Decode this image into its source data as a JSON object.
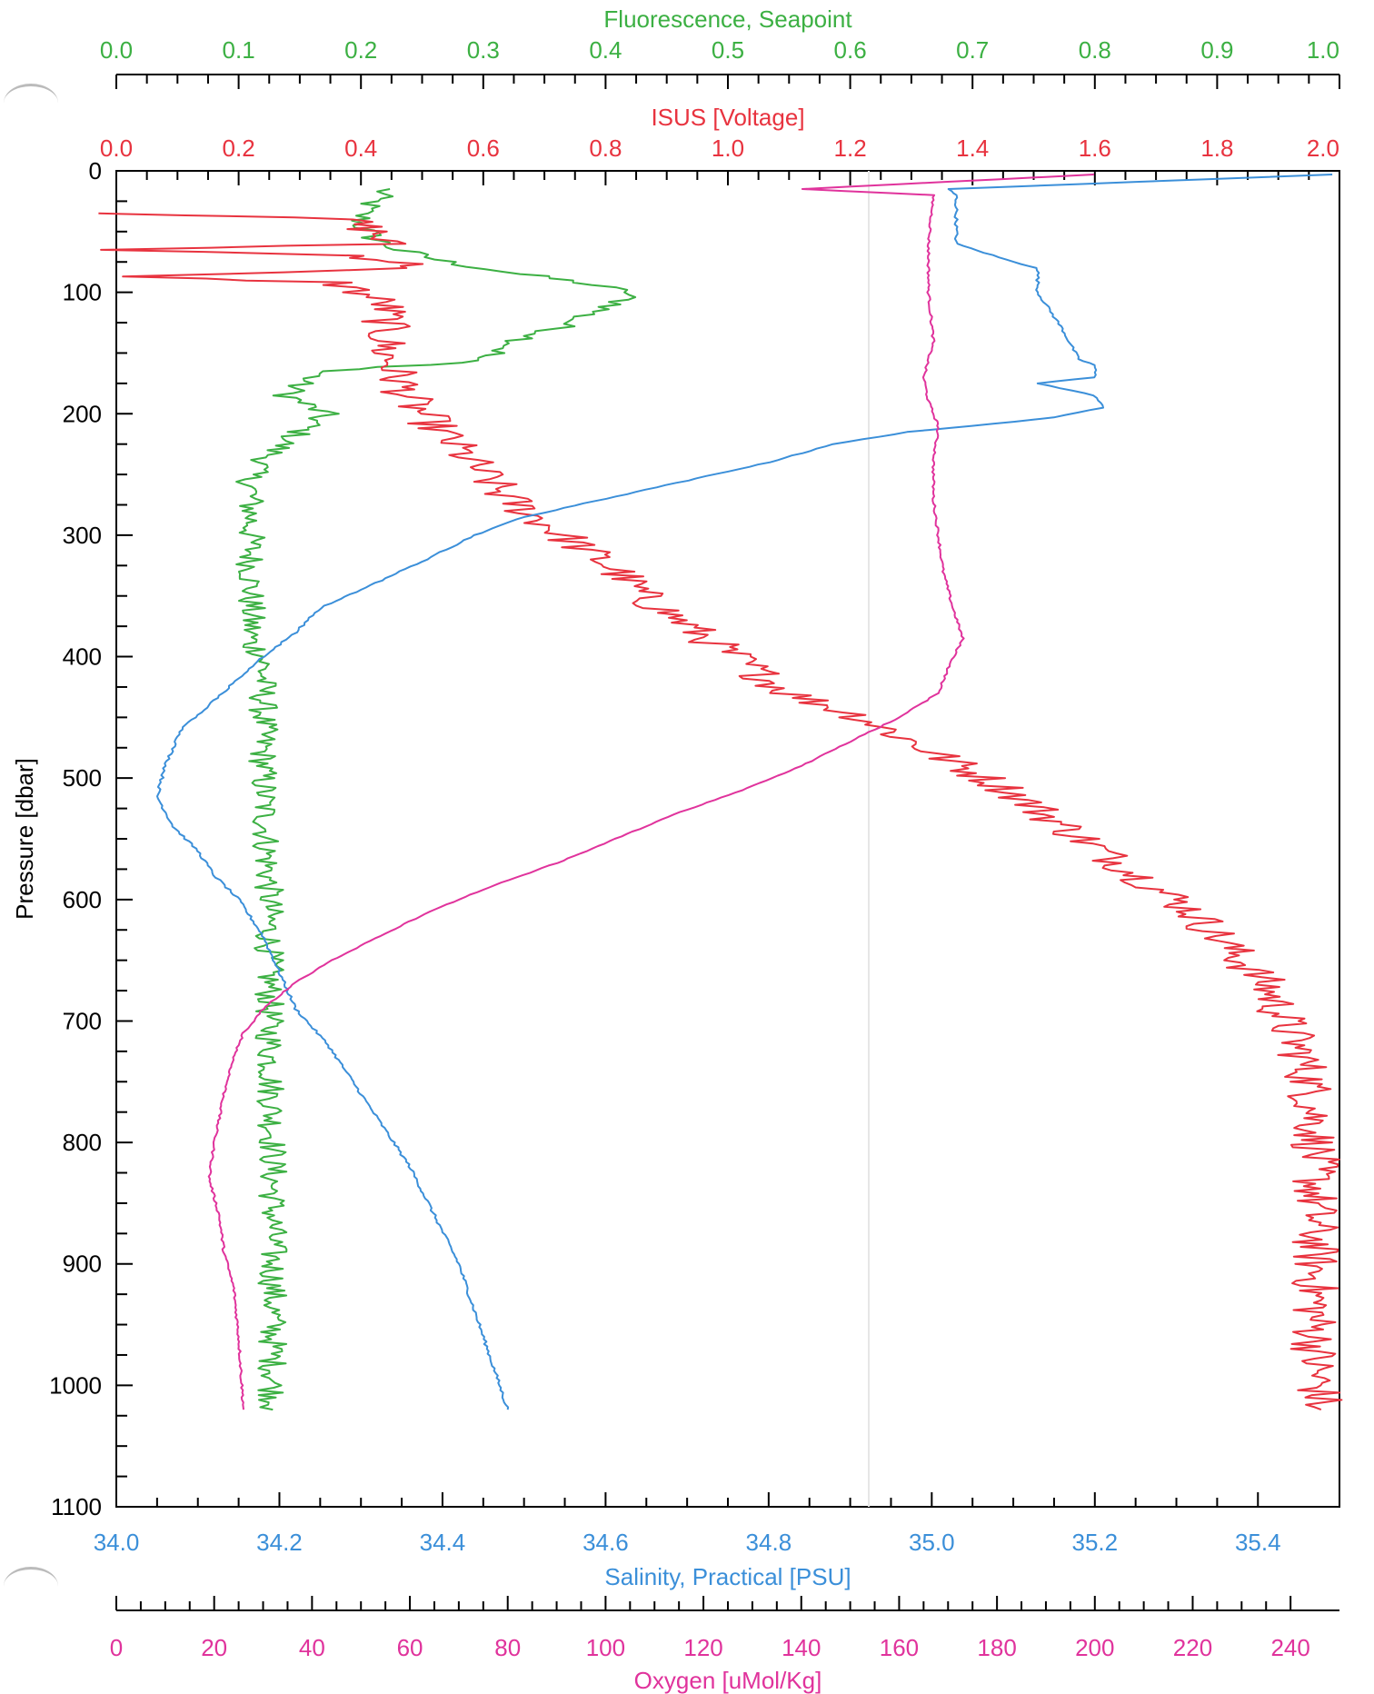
{
  "chart_data": {
    "type": "line",
    "ylabel": "Pressure [dbar]",
    "ylim": [
      0,
      1100
    ],
    "y_ticks": [
      0,
      100,
      200,
      300,
      400,
      500,
      600,
      700,
      800,
      900,
      1000,
      1100
    ],
    "y_reversed": true,
    "grid": false,
    "axes": {
      "fluorescence": {
        "label": "Fluorescence, Seapoint",
        "position": "top-outer",
        "color": "#3cb043",
        "range": [
          0.0,
          1.0
        ],
        "ticks": [
          "0.0",
          "0.1",
          "0.2",
          "0.3",
          "0.4",
          "0.5",
          "0.6",
          "0.7",
          "0.8",
          "0.9",
          "1.0"
        ]
      },
      "isus": {
        "label": "ISUS [Voltage]",
        "position": "top-inner",
        "color": "#e8333f",
        "range": [
          0.0,
          2.0
        ],
        "ticks": [
          "0.0",
          "0.2",
          "0.4",
          "0.6",
          "0.8",
          "1.0",
          "1.2",
          "1.4",
          "1.6",
          "1.8",
          "2.0"
        ]
      },
      "salinity": {
        "label": "Salinity, Practical [PSU]",
        "position": "bottom-inner",
        "color": "#3b8fd9",
        "range": [
          34.0,
          35.5
        ],
        "ticks": [
          "34.0",
          "34.2",
          "34.4",
          "34.6",
          "34.8",
          "35.0",
          "35.2",
          "35.4"
        ]
      },
      "oxygen": {
        "label": "Oxygen [uMol/Kg]",
        "position": "bottom-outer",
        "color": "#e0339c",
        "range": [
          0,
          250
        ],
        "ticks": [
          "0",
          "20",
          "40",
          "60",
          "80",
          "100",
          "120",
          "140",
          "160",
          "180",
          "200",
          "220",
          "240"
        ]
      }
    },
    "series": [
      {
        "name": "Fluorescence, Seapoint",
        "axis": "fluorescence",
        "color": "#3cb043",
        "noise": 0.012,
        "points": [
          [
            0.22,
            15
          ],
          [
            0.21,
            25
          ],
          [
            0.2,
            35
          ],
          [
            0.2,
            45
          ],
          [
            0.21,
            55
          ],
          [
            0.23,
            65
          ],
          [
            0.27,
            75
          ],
          [
            0.33,
            85
          ],
          [
            0.38,
            92
          ],
          [
            0.42,
            100
          ],
          [
            0.41,
            110
          ],
          [
            0.38,
            120
          ],
          [
            0.36,
            130
          ],
          [
            0.33,
            140
          ],
          [
            0.31,
            150
          ],
          [
            0.28,
            158
          ],
          [
            0.17,
            165
          ],
          [
            0.15,
            175
          ],
          [
            0.14,
            185
          ],
          [
            0.17,
            200
          ],
          [
            0.15,
            215
          ],
          [
            0.13,
            230
          ],
          [
            0.11,
            250
          ],
          [
            0.11,
            300
          ],
          [
            0.11,
            350
          ],
          [
            0.11,
            390
          ],
          [
            0.12,
            398
          ],
          [
            0.12,
            420
          ],
          [
            0.12,
            500
          ],
          [
            0.125,
            600
          ],
          [
            0.125,
            700
          ],
          [
            0.128,
            800
          ],
          [
            0.128,
            900
          ],
          [
            0.128,
            1020
          ]
        ]
      },
      {
        "name": "ISUS [Voltage]",
        "axis": "isus",
        "color": "#e8333f",
        "noise": 0.04,
        "points": [
          [
            0.0,
            35
          ],
          [
            0.38,
            40
          ],
          [
            0.42,
            50
          ],
          [
            0.44,
            60
          ],
          [
            0.0,
            65
          ],
          [
            0.4,
            70
          ],
          [
            0.46,
            75
          ],
          [
            0.5,
            80
          ],
          [
            0.0,
            87
          ],
          [
            0.36,
            92
          ],
          [
            0.4,
            100
          ],
          [
            0.44,
            110
          ],
          [
            0.44,
            130
          ],
          [
            0.44,
            150
          ],
          [
            0.46,
            170
          ],
          [
            0.48,
            190
          ],
          [
            0.52,
            210
          ],
          [
            0.56,
            230
          ],
          [
            0.6,
            250
          ],
          [
            0.64,
            270
          ],
          [
            0.7,
            290
          ],
          [
            0.76,
            310
          ],
          [
            0.82,
            330
          ],
          [
            0.86,
            350
          ],
          [
            0.92,
            370
          ],
          [
            0.98,
            390
          ],
          [
            1.04,
            410
          ],
          [
            1.1,
            430
          ],
          [
            1.22,
            450
          ],
          [
            1.3,
            470
          ],
          [
            1.38,
            490
          ],
          [
            1.46,
            510
          ],
          [
            1.52,
            530
          ],
          [
            1.58,
            550
          ],
          [
            1.64,
            570
          ],
          [
            1.7,
            590
          ],
          [
            1.76,
            610
          ],
          [
            1.8,
            630
          ],
          [
            1.84,
            650
          ],
          [
            1.88,
            670
          ],
          [
            1.9,
            690
          ],
          [
            1.92,
            710
          ],
          [
            1.94,
            730
          ],
          [
            1.95,
            750
          ],
          [
            1.96,
            780
          ],
          [
            1.96,
            820
          ],
          [
            1.96,
            860
          ],
          [
            1.96,
            900
          ],
          [
            1.96,
            940
          ],
          [
            1.96,
            980
          ],
          [
            1.97,
            1020
          ]
        ]
      },
      {
        "name": "Salinity, Practical [PSU]",
        "axis": "salinity",
        "color": "#3b8fd9",
        "noise": 0.002,
        "points": [
          [
            35.49,
            3
          ],
          [
            35.02,
            15
          ],
          [
            35.03,
            20
          ],
          [
            35.03,
            60
          ],
          [
            35.1,
            75
          ],
          [
            35.13,
            80
          ],
          [
            35.13,
            100
          ],
          [
            35.16,
            130
          ],
          [
            35.18,
            155
          ],
          [
            35.2,
            160
          ],
          [
            35.2,
            170
          ],
          [
            35.13,
            175
          ],
          [
            35.2,
            185
          ],
          [
            35.21,
            195
          ],
          [
            35.15,
            203
          ],
          [
            35.05,
            210
          ],
          [
            34.97,
            215
          ],
          [
            34.88,
            225
          ],
          [
            34.8,
            240
          ],
          [
            34.7,
            255
          ],
          [
            34.6,
            270
          ],
          [
            34.5,
            285
          ],
          [
            34.44,
            300
          ],
          [
            34.38,
            320
          ],
          [
            34.3,
            345
          ],
          [
            34.25,
            360
          ],
          [
            34.22,
            380
          ],
          [
            34.18,
            400
          ],
          [
            34.13,
            430
          ],
          [
            34.08,
            460
          ],
          [
            34.06,
            490
          ],
          [
            34.05,
            515
          ],
          [
            34.07,
            540
          ],
          [
            34.1,
            560
          ],
          [
            34.12,
            580
          ],
          [
            34.15,
            600
          ],
          [
            34.18,
            630
          ],
          [
            34.2,
            660
          ],
          [
            34.22,
            690
          ],
          [
            34.26,
            720
          ],
          [
            34.28,
            740
          ],
          [
            34.32,
            780
          ],
          [
            34.36,
            820
          ],
          [
            34.39,
            860
          ],
          [
            34.42,
            900
          ],
          [
            34.44,
            940
          ],
          [
            34.46,
            980
          ],
          [
            34.48,
            1020
          ]
        ]
      },
      {
        "name": "Oxygen [uMol/Kg]",
        "axis": "oxygen",
        "color": "#e0339c",
        "noise": 0.25,
        "points": [
          [
            200,
            3
          ],
          [
            140,
            15
          ],
          [
            167,
            20
          ],
          [
            166,
            60
          ],
          [
            166,
            100
          ],
          [
            167,
            140
          ],
          [
            165,
            170
          ],
          [
            166,
            190
          ],
          [
            168,
            210
          ],
          [
            167,
            240
          ],
          [
            167,
            270
          ],
          [
            168,
            300
          ],
          [
            169,
            330
          ],
          [
            171,
            360
          ],
          [
            173,
            385
          ],
          [
            170,
            410
          ],
          [
            168,
            430
          ],
          [
            160,
            450
          ],
          [
            150,
            470
          ],
          [
            140,
            490
          ],
          [
            128,
            510
          ],
          [
            114,
            530
          ],
          [
            102,
            550
          ],
          [
            90,
            570
          ],
          [
            76,
            590
          ],
          [
            64,
            610
          ],
          [
            54,
            630
          ],
          [
            44,
            650
          ],
          [
            36,
            670
          ],
          [
            30,
            690
          ],
          [
            26,
            710
          ],
          [
            24,
            730
          ],
          [
            22,
            760
          ],
          [
            20,
            800
          ],
          [
            19,
            830
          ],
          [
            21,
            860
          ],
          [
            22,
            890
          ],
          [
            24,
            920
          ],
          [
            25,
            960
          ],
          [
            26,
            1020
          ]
        ]
      }
    ]
  }
}
